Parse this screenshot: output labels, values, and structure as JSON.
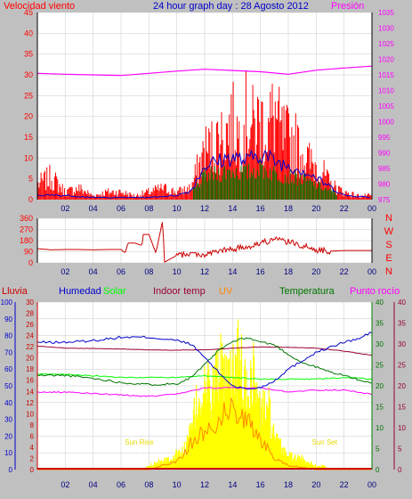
{
  "header": {
    "left_label": "Velocidad viento",
    "title": "24 hour graph day : 28 Agosto 2012",
    "right_label": "Presión"
  },
  "colors": {
    "background": "#c0c0c0",
    "plot_bg": "#ffffff",
    "grid": "#c8c8c8",
    "wind": "#ff0000",
    "wind_avg": "#0000cc",
    "wind_dark": "#007700",
    "pressure": "#ff00ff",
    "direction": "#cc0000",
    "humidity": "#0000cc",
    "solar": "#00ff00",
    "indoor": "#990033",
    "uv": "#ff8800",
    "temperature": "#007700",
    "dewpoint": "#ff00ff",
    "rain": "#cc0000",
    "solar_fill": "#ffff00"
  },
  "x_ticks": [
    "02",
    "04",
    "06",
    "08",
    "10",
    "12",
    "14",
    "16",
    "18",
    "20",
    "22",
    "00"
  ],
  "chart_data": [
    {
      "type": "area",
      "title": "24 hour graph day : 28 Agosto 2012",
      "left_axis": {
        "label": "Velocidad viento",
        "ylim": [
          0,
          45
        ],
        "ticks": [
          0,
          5,
          10,
          15,
          20,
          25,
          30,
          35,
          40,
          45
        ]
      },
      "right_axis": {
        "label": "Presión",
        "ylim": [
          975,
          1035
        ],
        "ticks": [
          975,
          980,
          985,
          990,
          995,
          1000,
          1005,
          1010,
          1015,
          1020,
          1025,
          1030,
          1035
        ]
      },
      "x_hours": [
        0,
        2,
        4,
        6,
        8,
        10,
        12,
        14,
        16,
        18,
        20,
        22,
        24
      ],
      "series": [
        {
          "name": "Presión",
          "axis": "right",
          "x": [
            0,
            2,
            4,
            6,
            8,
            10,
            12,
            14,
            16,
            18,
            20,
            22,
            24
          ],
          "values": [
            1015.5,
            1015.2,
            1015.0,
            1014.8,
            1015.5,
            1016.2,
            1016.8,
            1016.4,
            1016.0,
            1015.2,
            1016.5,
            1017.2,
            1017.8
          ]
        },
        {
          "axis": "left",
          "x": [
            0,
            1,
            2,
            3,
            4,
            5,
            6,
            7,
            8,
            9,
            10,
            11,
            11.5,
            12,
            12.5,
            13,
            13.5,
            14,
            14.5,
            15,
            15.5,
            16,
            16.5,
            17,
            17.5,
            18,
            18.5,
            19,
            19.5,
            20,
            20.5,
            21,
            22,
            23,
            24
          ],
          "values": [
            4,
            6,
            2,
            3,
            1,
            2,
            2,
            1,
            2,
            3,
            2,
            3,
            8,
            13,
            14,
            16,
            18,
            20,
            17,
            22,
            19,
            21,
            18,
            23,
            17,
            16,
            15,
            12,
            10,
            9,
            7,
            4,
            2,
            1,
            1
          ]
        },
        {
          "axis": "left",
          "x": [
            0,
            2,
            4,
            6,
            8,
            10,
            11,
            12,
            13,
            14,
            15,
            16,
            17,
            18,
            19,
            20,
            21,
            22,
            24
          ],
          "values": [
            1,
            1,
            0.5,
            0.5,
            0.5,
            1,
            2,
            8,
            9,
            10,
            9,
            11,
            9,
            8,
            7,
            5,
            3,
            1,
            0.5
          ]
        }
      ]
    },
    {
      "type": "line",
      "left_axis": {
        "ylim": [
          0,
          360
        ],
        "ticks": [
          0,
          90,
          180,
          270,
          360
        ]
      },
      "right_labels": [
        "N",
        "W",
        "S",
        "E",
        "N"
      ],
      "series": [
        {
          "x": [
            0,
            1,
            2,
            3,
            4,
            5,
            6,
            6.3,
            6.5,
            7,
            7.5,
            7.6,
            8,
            8.5,
            9,
            9.1,
            10,
            11,
            12,
            13,
            14,
            15,
            16,
            17,
            18,
            19,
            20,
            21,
            22,
            23,
            24
          ],
          "values": [
            115,
            105,
            108,
            108,
            105,
            108,
            108,
            80,
            160,
            160,
            140,
            230,
            230,
            80,
            350,
            5,
            60,
            75,
            65,
            95,
            110,
            130,
            160,
            190,
            170,
            140,
            105,
            95,
            100,
            100,
            100
          ]
        }
      ]
    },
    {
      "type": "line",
      "axes": [
        {
          "label": "Lluvia",
          "ylim": [
            0,
            100
          ],
          "ticks": [
            0,
            10,
            20,
            30,
            40,
            50,
            60,
            70,
            80,
            90,
            100
          ]
        },
        {
          "label": "Humedad",
          "ylim": [
            0,
            30
          ],
          "ticks": [
            0,
            2,
            4,
            6,
            8,
            10,
            12,
            14,
            16,
            18,
            20,
            22,
            24,
            26,
            28,
            30
          ]
        },
        {
          "label": "Temperatura",
          "ylim": [
            0,
            40
          ],
          "ticks": [
            0,
            5,
            10,
            15,
            20,
            25,
            30,
            35,
            40
          ]
        },
        {
          "label": "Punto rocío",
          "ylim": [
            0,
            40
          ],
          "ticks": [
            0,
            5,
            10,
            15,
            20,
            25,
            30,
            35,
            40
          ]
        }
      ],
      "legend": [
        "Humedad",
        "Solar",
        "Indoor temp",
        "UV",
        "Temperatura",
        "Punto rocío"
      ],
      "annotations": [
        "Sun Rise",
        "Sun Set"
      ],
      "series": [
        {
          "name": "Humedad",
          "x": [
            0,
            2,
            4,
            6,
            8,
            10,
            11,
            12,
            13,
            14,
            15,
            16,
            17,
            18,
            19,
            20,
            21,
            22,
            23,
            24
          ],
          "values": [
            76,
            76,
            77,
            79,
            79,
            77,
            75,
            67,
            58,
            50,
            48,
            49,
            53,
            60,
            65,
            70,
            73,
            76,
            78,
            82
          ]
        },
        {
          "name": "Solar",
          "x": [
            0,
            2,
            4,
            6,
            8,
            10,
            12,
            14,
            16,
            18,
            20,
            22,
            24
          ],
          "values": [
            57,
            57,
            56,
            55,
            55,
            55,
            56,
            55,
            54,
            54,
            54,
            55,
            54
          ]
        },
        {
          "name": "Indoor temp",
          "x": [
            0,
            2,
            4,
            6,
            8,
            10,
            12,
            14,
            16,
            18,
            20,
            22,
            24
          ],
          "values": [
            29.5,
            29.0,
            28.9,
            28.8,
            28.6,
            28.5,
            28.6,
            29.0,
            29.3,
            29.2,
            29.0,
            28.3,
            27.3
          ]
        },
        {
          "name": "Temperatura",
          "x": [
            0,
            2,
            4,
            6,
            8,
            10,
            11,
            12,
            13,
            14,
            15,
            16,
            17,
            18,
            19,
            20,
            21,
            22,
            23,
            24
          ],
          "values": [
            22.5,
            22.5,
            21.8,
            20.8,
            20.3,
            20.5,
            22,
            25,
            28.5,
            30.5,
            31.5,
            30.5,
            29.8,
            27.5,
            25.5,
            24.5,
            23.3,
            22.5,
            21.5,
            20.5
          ]
        },
        {
          "name": "Punto rocío",
          "x": [
            0,
            2,
            4,
            6,
            8,
            10,
            12,
            14,
            16,
            18,
            20,
            22,
            24
          ],
          "values": [
            18.5,
            18.5,
            18.2,
            17.8,
            17.5,
            18.0,
            19.5,
            19.5,
            19.5,
            18.5,
            19.0,
            19.0,
            18.0
          ]
        },
        {
          "name": "Solar radiation fill",
          "x": [
            0,
            7.5,
            8.5,
            9.5,
            10.5,
            11,
            11.5,
            12,
            12.5,
            13,
            13.5,
            14,
            14.5,
            15,
            15.5,
            16,
            16.5,
            17,
            17.5,
            18,
            18.5,
            19,
            19.5,
            20,
            20.5,
            21,
            24
          ],
          "values": [
            0,
            0,
            2,
            3,
            5,
            10,
            18,
            22,
            20,
            28,
            22,
            25,
            30,
            20,
            26,
            15,
            18,
            8,
            6,
            4,
            3,
            3,
            2,
            1,
            1,
            0,
            0
          ]
        },
        {
          "name": "UV",
          "x": [
            0,
            8,
            9,
            10,
            11,
            12,
            13,
            14,
            15,
            16,
            17,
            18,
            19,
            20,
            24
          ],
          "values": [
            0,
            0,
            1,
            2,
            6,
            9,
            12,
            15,
            12,
            7,
            3,
            1,
            0.5,
            0,
            0
          ]
        }
      ],
      "rain_values": [
        0
      ]
    }
  ],
  "panel3": {
    "legend": {
      "lluvia": "Lluvia",
      "humedad": "Humedad",
      "solar": "Solar",
      "indoor": "Indoor temp",
      "uv": "UV",
      "temperatura": "Temperatura",
      "dewpoint": "Punto rocío"
    },
    "sunrise": "Sun Rise",
    "sunset": "Sun Set"
  }
}
